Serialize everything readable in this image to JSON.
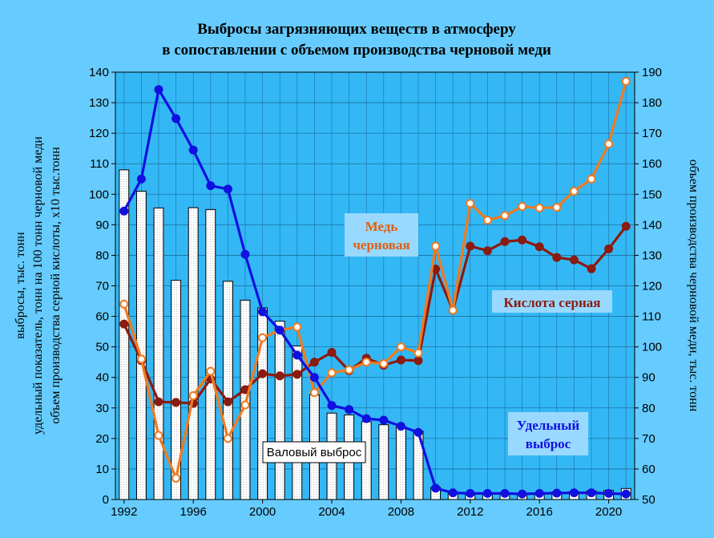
{
  "chart_data": {
    "type": "bar+line",
    "title": [
      "Выбросы загрязняющих  веществ в атмосферу",
      "в сопоставлении с объемом производства черновой меди"
    ],
    "ylabel_left": [
      "выбросы, тыс. тонн",
      "удельный показатель, тонн на 100 тонн черновой меди",
      "объем производства серной кислоты, х10 тыс.тонн"
    ],
    "ylabel_right": "объем производства черновой меди, тыс. тонн",
    "x_ticks": [
      "1992",
      "1996",
      "2000",
      "2004",
      "2008",
      "2012",
      "2016",
      "2020"
    ],
    "y_left_ticks": [
      "0",
      "10",
      "20",
      "30",
      "40",
      "50",
      "60",
      "70",
      "80",
      "90",
      "100",
      "110",
      "120",
      "130",
      "140"
    ],
    "y_right_ticks": [
      "50",
      "60",
      "70",
      "80",
      "90",
      "100",
      "110",
      "120",
      "130",
      "140",
      "150",
      "160",
      "170",
      "180",
      "190"
    ],
    "ylim_left": [
      0,
      140
    ],
    "ylim_right": [
      50,
      190
    ],
    "xlim": [
      1991.5,
      2021.5
    ],
    "years": [
      1992,
      1993,
      1994,
      1995,
      1996,
      1997,
      1998,
      1999,
      2000,
      2001,
      2002,
      2003,
      2004,
      2005,
      2006,
      2007,
      2008,
      2009,
      2010,
      2011,
      2012,
      2013,
      2014,
      2015,
      2016,
      2017,
      2018,
      2019,
      2020,
      2021
    ],
    "series": [
      {
        "key": "gross",
        "name": "Валовый выброс",
        "axis": "left",
        "render": "bar",
        "color": "#ffffff",
        "values": [
          108,
          101,
          95.5,
          71.8,
          95.6,
          95,
          71.5,
          65.3,
          62.8,
          58.4,
          50.3,
          34.3,
          28.3,
          27.7,
          25.5,
          24.5,
          23.8,
          22.4,
          4,
          2.2,
          1.5,
          1.6,
          1.7,
          1.9,
          2.2,
          2.5,
          2.6,
          2.8,
          3,
          3.6
        ]
      },
      {
        "key": "specific",
        "name": "Удельный выброс",
        "axis": "left",
        "render": "line",
        "color": "#1010e0",
        "values": [
          94.5,
          105,
          134.3,
          124.8,
          114.5,
          102.8,
          101.7,
          80.3,
          61.5,
          55.5,
          47.3,
          40,
          30.8,
          29.5,
          26.5,
          26,
          24,
          22,
          3.7,
          2.2,
          2,
          2,
          2,
          1.8,
          2,
          2.1,
          2.2,
          2.2,
          2,
          1.8
        ]
      },
      {
        "key": "acid",
        "name": "Кислота серная",
        "axis": "left",
        "render": "line",
        "color": "#8b1a10",
        "values": [
          57.5,
          45.5,
          32,
          31.8,
          31.5,
          39.5,
          32,
          36,
          41.2,
          40.5,
          41,
          45,
          48.2,
          42.2,
          46.3,
          44,
          45.7,
          45.5,
          75.5,
          62,
          83,
          81.5,
          84.5,
          85,
          82.8,
          79.3,
          78.5,
          75.6,
          82.1,
          89.5
        ]
      },
      {
        "key": "copper",
        "name": "Медь черновая",
        "axis": "right",
        "render": "line",
        "color": "#f07a20",
        "values": [
          114,
          96,
          71,
          57,
          84,
          92,
          70,
          81,
          103,
          105.5,
          106.5,
          85,
          91.5,
          92.5,
          95,
          94.5,
          100,
          98,
          133,
          112,
          147,
          141.5,
          143,
          146,
          145.5,
          145.7,
          151,
          155,
          166.5,
          187
        ]
      }
    ],
    "annotations": {
      "copper_label": [
        "Медь",
        "черновая"
      ],
      "acid_label": "Кислота серная",
      "specific_label": [
        "Удельный",
        "выброс"
      ],
      "gross_label": "Валовый выброс"
    },
    "colors": {
      "background": "#66ccff",
      "plot_area": "#33b8f5",
      "grid": "#1a6fa0",
      "label_box": "#99d9ff"
    },
    "grid": true
  }
}
